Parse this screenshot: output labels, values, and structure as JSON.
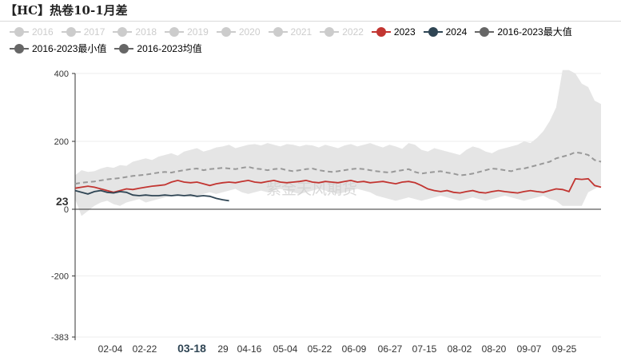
{
  "title": "【HC】热卷10-1月差",
  "legend": [
    {
      "name": "2016",
      "color": "#cccccc",
      "active": false
    },
    {
      "name": "2017",
      "color": "#cccccc",
      "active": false
    },
    {
      "name": "2018",
      "color": "#cccccc",
      "active": false
    },
    {
      "name": "2019",
      "color": "#cccccc",
      "active": false
    },
    {
      "name": "2020",
      "color": "#cccccc",
      "active": false
    },
    {
      "name": "2021",
      "color": "#cccccc",
      "active": false
    },
    {
      "name": "2022",
      "color": "#cccccc",
      "active": false
    },
    {
      "name": "2023",
      "color": "#c23531",
      "active": true
    },
    {
      "name": "2024",
      "color": "#2f4554",
      "active": true
    },
    {
      "name": "2016-2023最大值",
      "color": "#666666",
      "active": true
    },
    {
      "name": "2016-2023最小值",
      "color": "#666666",
      "active": true
    },
    {
      "name": "2016-2023均值",
      "color": "#666666",
      "active": true
    }
  ],
  "watermark": "紫金天风期货",
  "chart_data": {
    "type": "line",
    "x_ticks": [
      "02-04",
      "02-22",
      "03-18",
      "04-16",
      "05-04",
      "05-22",
      "06-09",
      "06-27",
      "07-15",
      "08-02",
      "08-20",
      "09-07",
      "09-25"
    ],
    "highlighted_tick": "03-18",
    "partial_tick": "29",
    "y_ticks": [
      400,
      200,
      0,
      -200,
      -383
    ],
    "ylim": [
      -383,
      400
    ],
    "y_marker": {
      "value": 23,
      "label": "23"
    },
    "series": [
      {
        "name": "2016-2023最大值",
        "style": "band-upper",
        "color": "#e5e5e5",
        "values": [
          100,
          115,
          110,
          112,
          120,
          125,
          122,
          130,
          128,
          140,
          145,
          150,
          145,
          155,
          160,
          165,
          158,
          170,
          175,
          180,
          170,
          175,
          182,
          185,
          190,
          180,
          185,
          190,
          192,
          188,
          195,
          190,
          185,
          192,
          190,
          185,
          190,
          188,
          182,
          190,
          185,
          180,
          188,
          192,
          185,
          190,
          195,
          188,
          182,
          190,
          185,
          178,
          195,
          190,
          175,
          170,
          180,
          175,
          170,
          165,
          160,
          175,
          185,
          180,
          170,
          165,
          175,
          180,
          185,
          190,
          200,
          195,
          210,
          230,
          260,
          300,
          410,
          410,
          400,
          370,
          360,
          320,
          310
        ]
      },
      {
        "name": "2016-2023最小值",
        "style": "band-lower",
        "color": "#e5e5e5",
        "values": [
          30,
          -20,
          -5,
          10,
          20,
          25,
          15,
          10,
          20,
          25,
          30,
          20,
          25,
          30,
          35,
          40,
          45,
          40,
          35,
          40,
          45,
          50,
          45,
          50,
          55,
          60,
          50,
          45,
          50,
          55,
          50,
          55,
          60,
          55,
          50,
          45,
          50,
          55,
          60,
          55,
          50,
          45,
          50,
          55,
          60,
          55,
          50,
          40,
          35,
          30,
          25,
          30,
          35,
          30,
          25,
          30,
          35,
          40,
          35,
          30,
          25,
          30,
          35,
          30,
          25,
          30,
          35,
          40,
          35,
          30,
          25,
          30,
          35,
          40,
          30,
          25,
          10,
          10,
          10,
          10,
          50,
          60,
          70
        ]
      },
      {
        "name": "2016-2023均值",
        "style": "dashed",
        "color": "#999999",
        "values": [
          75,
          78,
          80,
          82,
          85,
          88,
          90,
          92,
          95,
          98,
          100,
          102,
          105,
          108,
          110,
          108,
          112,
          115,
          118,
          120,
          115,
          118,
          120,
          122,
          120,
          118,
          122,
          125,
          120,
          118,
          115,
          118,
          120,
          115,
          112,
          115,
          118,
          120,
          115,
          112,
          110,
          112,
          115,
          118,
          120,
          118,
          115,
          112,
          110,
          108,
          112,
          115,
          118,
          110,
          105,
          108,
          110,
          112,
          108,
          105,
          100,
          102,
          105,
          110,
          115,
          120,
          118,
          115,
          112,
          118,
          120,
          125,
          130,
          135,
          140,
          150,
          155,
          160,
          168,
          165,
          160,
          145,
          140
        ]
      },
      {
        "name": "2023",
        "style": "solid",
        "color": "#c23531",
        "values": [
          62,
          65,
          68,
          65,
          60,
          55,
          50,
          55,
          60,
          58,
          62,
          65,
          68,
          70,
          72,
          80,
          85,
          80,
          78,
          80,
          75,
          70,
          75,
          78,
          80,
          78,
          82,
          85,
          80,
          78,
          82,
          85,
          80,
          78,
          80,
          82,
          85,
          80,
          78,
          82,
          80,
          78,
          82,
          85,
          80,
          82,
          78,
          80,
          82,
          78,
          75,
          80,
          82,
          78,
          70,
          60,
          55,
          52,
          55,
          50,
          48,
          52,
          55,
          50,
          48,
          52,
          55,
          52,
          50,
          48,
          52,
          55,
          52,
          50,
          55,
          60,
          58,
          52,
          90,
          88,
          90,
          70,
          65
        ]
      },
      {
        "name": "2024",
        "style": "solid",
        "color": "#2f4554",
        "values": [
          55,
          50,
          45,
          52,
          55,
          50,
          48,
          52,
          50,
          42,
          40,
          42,
          40,
          40,
          42,
          40,
          42,
          40,
          42,
          38,
          40,
          38,
          32,
          28,
          25
        ]
      }
    ]
  }
}
